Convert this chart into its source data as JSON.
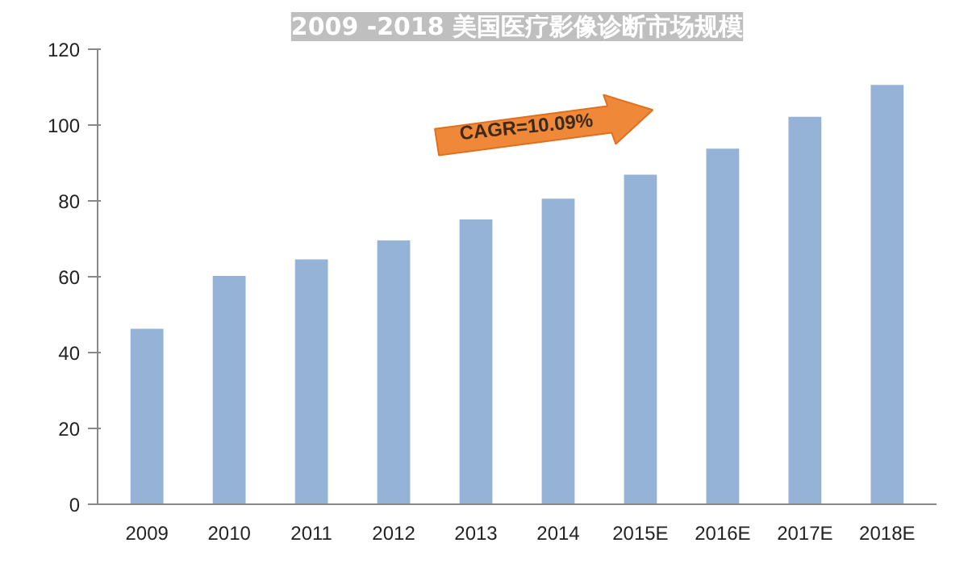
{
  "chart_data": {
    "type": "bar",
    "title": "2009 -2018 美国医疗影像诊断市场规模",
    "categories": [
      "2009",
      "2010",
      "2011",
      "2012",
      "2013",
      "2014",
      "2015E",
      "2016E",
      "2017E",
      "2018E"
    ],
    "values": [
      46.3,
      60.2,
      64.6,
      69.6,
      75.1,
      80.6,
      86.9,
      93.8,
      102.2,
      110.6
    ],
    "color": "#95b3d7",
    "ylim": [
      0,
      120
    ],
    "yticks": [
      0,
      20,
      40,
      60,
      80,
      100,
      120
    ],
    "grid": false,
    "annotations": [
      "CAGR=10.09%"
    ]
  }
}
